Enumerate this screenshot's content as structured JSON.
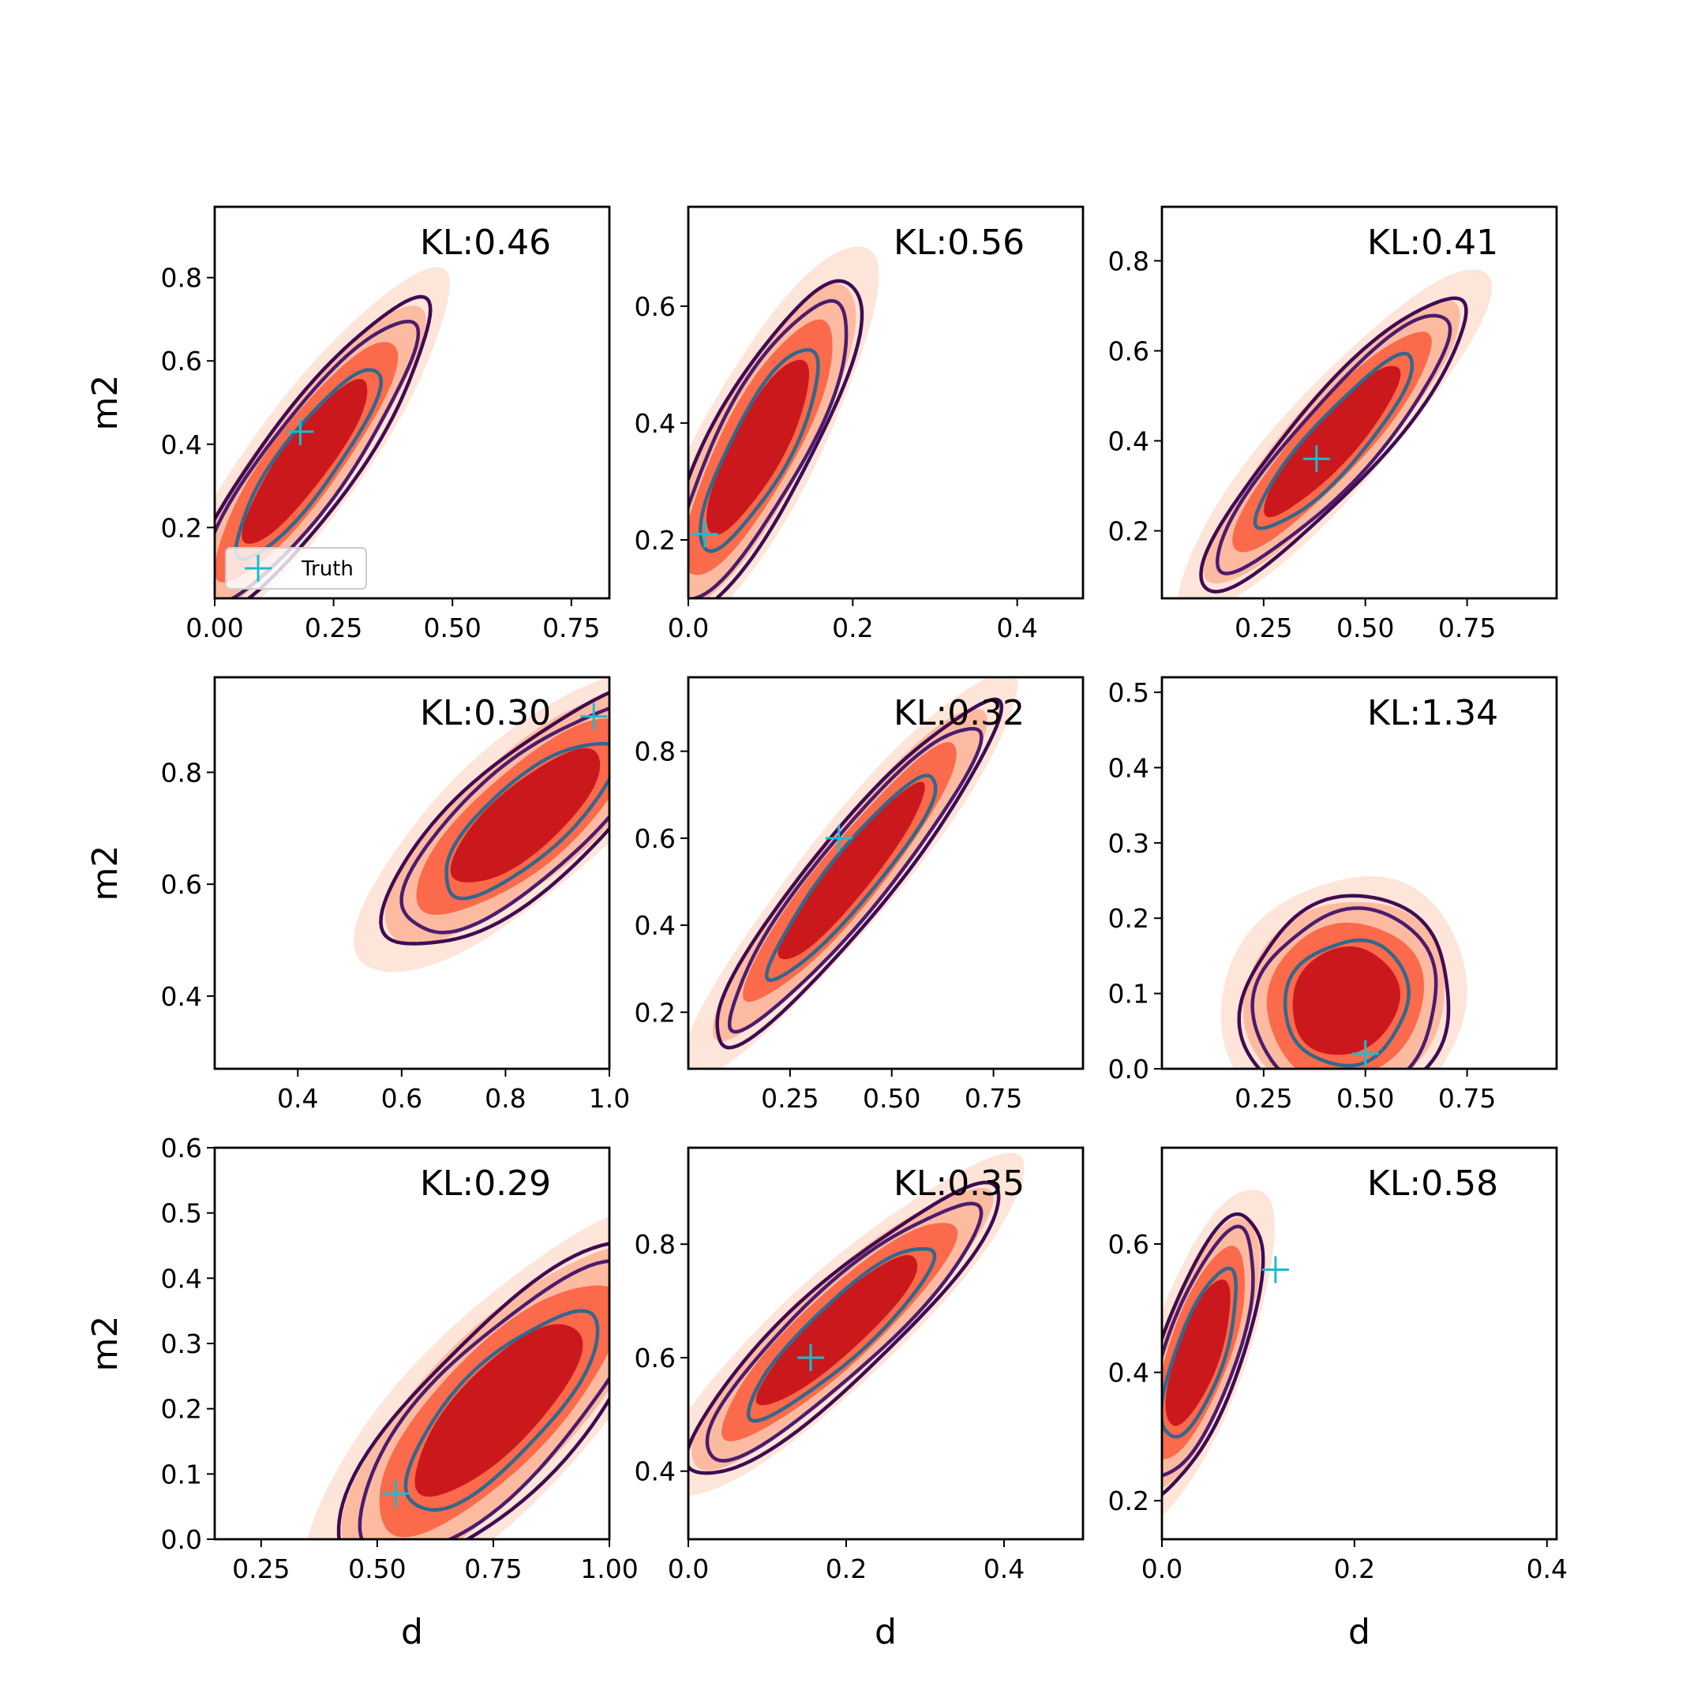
{
  "figure": {
    "xlabel": "d",
    "ylabel": "m2",
    "legend_label": "Truth"
  },
  "colors": {
    "fill_levels": [
      "#fee5d9",
      "#fcbba1",
      "#fb6a4a",
      "#cb181d"
    ],
    "contour_outer": "#3f0b52",
    "contour_mid": "#4b1c6e",
    "contour_inner": "#31688e",
    "truth_marker": "#17becf"
  },
  "chart_data": [
    {
      "type": "contour",
      "kl_label": "KL:0.46",
      "xlim": [
        0.0,
        0.83
      ],
      "ylim": [
        0.03,
        0.97
      ],
      "xticks": [
        {
          "v": 0.0,
          "label": "0.00"
        },
        {
          "v": 0.25,
          "label": "0.25"
        },
        {
          "v": 0.5,
          "label": "0.50"
        },
        {
          "v": 0.75,
          "label": "0.75"
        }
      ],
      "yticks": [
        {
          "v": 0.2,
          "label": "0.2"
        },
        {
          "v": 0.4,
          "label": "0.4"
        },
        {
          "v": 0.6,
          "label": "0.6"
        },
        {
          "v": 0.8,
          "label": "0.8"
        }
      ],
      "center": [
        0.19,
        0.36
      ],
      "sigma": [
        0.11,
        0.165
      ],
      "rho": 0.88,
      "truth": [
        0.18,
        0.43
      ],
      "legend": true
    },
    {
      "type": "contour",
      "kl_label": "KL:0.56",
      "xlim": [
        0.0,
        0.48
      ],
      "ylim": [
        0.1,
        0.77
      ],
      "xticks": [
        {
          "v": 0.0,
          "label": "0.0"
        },
        {
          "v": 0.2,
          "label": "0.2"
        },
        {
          "v": 0.4,
          "label": "0.4"
        }
      ],
      "yticks": [
        {
          "v": 0.2,
          "label": "0.2"
        },
        {
          "v": 0.4,
          "label": "0.4"
        },
        {
          "v": 0.6,
          "label": "0.6"
        }
      ],
      "center": [
        0.085,
        0.36
      ],
      "sigma": [
        0.052,
        0.125
      ],
      "rho": 0.82,
      "truth": [
        0.02,
        0.21
      ],
      "legend": false
    },
    {
      "type": "contour",
      "kl_label": "KL:0.41",
      "xlim": [
        0.0,
        0.97
      ],
      "ylim": [
        0.05,
        0.92
      ],
      "xticks": [
        {
          "v": 0.25,
          "label": "0.25"
        },
        {
          "v": 0.5,
          "label": "0.50"
        },
        {
          "v": 0.75,
          "label": "0.75"
        }
      ],
      "yticks": [
        {
          "v": 0.2,
          "label": "0.2"
        },
        {
          "v": 0.4,
          "label": "0.4"
        },
        {
          "v": 0.6,
          "label": "0.6"
        },
        {
          "v": 0.8,
          "label": "0.8"
        }
      ],
      "center": [
        0.42,
        0.4
      ],
      "sigma": [
        0.14,
        0.14
      ],
      "rho": 0.9,
      "truth": [
        0.38,
        0.36
      ],
      "legend": false
    },
    {
      "type": "contour",
      "kl_label": "KL:0.30",
      "xlim": [
        0.24,
        1.0
      ],
      "ylim": [
        0.27,
        0.97
      ],
      "xticks": [
        {
          "v": 0.4,
          "label": "0.4"
        },
        {
          "v": 0.6,
          "label": "0.6"
        },
        {
          "v": 0.8,
          "label": "0.8"
        },
        {
          "v": 1.0,
          "label": "1.0"
        }
      ],
      "yticks": [
        {
          "v": 0.4,
          "label": "0.4"
        },
        {
          "v": 0.6,
          "label": "0.6"
        },
        {
          "v": 0.8,
          "label": "0.8"
        }
      ],
      "center": [
        0.84,
        0.72
      ],
      "sigma": [
        0.12,
        0.1
      ],
      "rho": 0.78,
      "truth": [
        0.97,
        0.9
      ],
      "legend": false
    },
    {
      "type": "contour",
      "kl_label": "KL:0.32",
      "xlim": [
        0.0,
        0.97
      ],
      "ylim": [
        0.07,
        0.97
      ],
      "xticks": [
        {
          "v": 0.25,
          "label": "0.25"
        },
        {
          "v": 0.5,
          "label": "0.50"
        },
        {
          "v": 0.75,
          "label": "0.75"
        }
      ],
      "yticks": [
        {
          "v": 0.2,
          "label": "0.2"
        },
        {
          "v": 0.4,
          "label": "0.4"
        },
        {
          "v": 0.6,
          "label": "0.6"
        },
        {
          "v": 0.8,
          "label": "0.8"
        }
      ],
      "center": [
        0.4,
        0.52
      ],
      "sigma": [
        0.15,
        0.17
      ],
      "rho": 0.93,
      "truth": [
        0.37,
        0.6
      ],
      "legend": false
    },
    {
      "type": "contour",
      "kl_label": "KL:1.34",
      "xlim": [
        0.0,
        0.97
      ],
      "ylim": [
        0.0,
        0.52
      ],
      "xticks": [
        {
          "v": 0.25,
          "label": "0.25"
        },
        {
          "v": 0.5,
          "label": "0.50"
        },
        {
          "v": 0.75,
          "label": "0.75"
        }
      ],
      "yticks": [
        {
          "v": 0.0,
          "label": "0.0"
        },
        {
          "v": 0.1,
          "label": "0.1"
        },
        {
          "v": 0.2,
          "label": "0.2"
        },
        {
          "v": 0.3,
          "label": "0.3"
        },
        {
          "v": 0.4,
          "label": "0.4"
        },
        {
          "v": 0.5,
          "label": "0.5"
        }
      ],
      "center": [
        0.45,
        0.09
      ],
      "sigma": [
        0.11,
        0.06
      ],
      "rho": 0.1,
      "truth": [
        0.5,
        0.02
      ],
      "legend": false
    },
    {
      "type": "contour",
      "kl_label": "KL:0.29",
      "xlim": [
        0.15,
        1.0
      ],
      "ylim": [
        0.0,
        0.6
      ],
      "xticks": [
        {
          "v": 0.25,
          "label": "0.25"
        },
        {
          "v": 0.5,
          "label": "0.50"
        },
        {
          "v": 0.75,
          "label": "0.75"
        },
        {
          "v": 1.0,
          "label": "1.00"
        }
      ],
      "yticks": [
        {
          "v": 0.0,
          "label": "0.0"
        },
        {
          "v": 0.1,
          "label": "0.1"
        },
        {
          "v": 0.2,
          "label": "0.2"
        },
        {
          "v": 0.3,
          "label": "0.3"
        },
        {
          "v": 0.4,
          "label": "0.4"
        },
        {
          "v": 0.5,
          "label": "0.5"
        },
        {
          "v": 0.6,
          "label": "0.6"
        }
      ],
      "center": [
        0.76,
        0.2
      ],
      "sigma": [
        0.15,
        0.11
      ],
      "rho": 0.78,
      "truth": [
        0.54,
        0.07
      ],
      "legend": false
    },
    {
      "type": "contour",
      "kl_label": "KL:0.35",
      "xlim": [
        0.0,
        0.5
      ],
      "ylim": [
        0.28,
        0.97
      ],
      "xticks": [
        {
          "v": 0.0,
          "label": "0.0"
        },
        {
          "v": 0.2,
          "label": "0.2"
        },
        {
          "v": 0.4,
          "label": "0.4"
        }
      ],
      "yticks": [
        {
          "v": 0.4,
          "label": "0.4"
        },
        {
          "v": 0.6,
          "label": "0.6"
        },
        {
          "v": 0.8,
          "label": "0.8"
        }
      ],
      "center": [
        0.19,
        0.65
      ],
      "sigma": [
        0.085,
        0.11
      ],
      "rho": 0.9,
      "truth": [
        0.155,
        0.6
      ],
      "legend": false
    },
    {
      "type": "contour",
      "kl_label": "KL:0.58",
      "xlim": [
        0.0,
        0.41
      ],
      "ylim": [
        0.14,
        0.75
      ],
      "xticks": [
        {
          "v": 0.0,
          "label": "0.0"
        },
        {
          "v": 0.2,
          "label": "0.2"
        },
        {
          "v": 0.4,
          "label": "0.4"
        }
      ],
      "yticks": [
        {
          "v": 0.2,
          "label": "0.2"
        },
        {
          "v": 0.4,
          "label": "0.4"
        },
        {
          "v": 0.6,
          "label": "0.6"
        }
      ],
      "center": [
        0.038,
        0.43
      ],
      "sigma": [
        0.028,
        0.095
      ],
      "rho": 0.72,
      "truth": [
        0.118,
        0.56
      ],
      "legend": false
    }
  ]
}
